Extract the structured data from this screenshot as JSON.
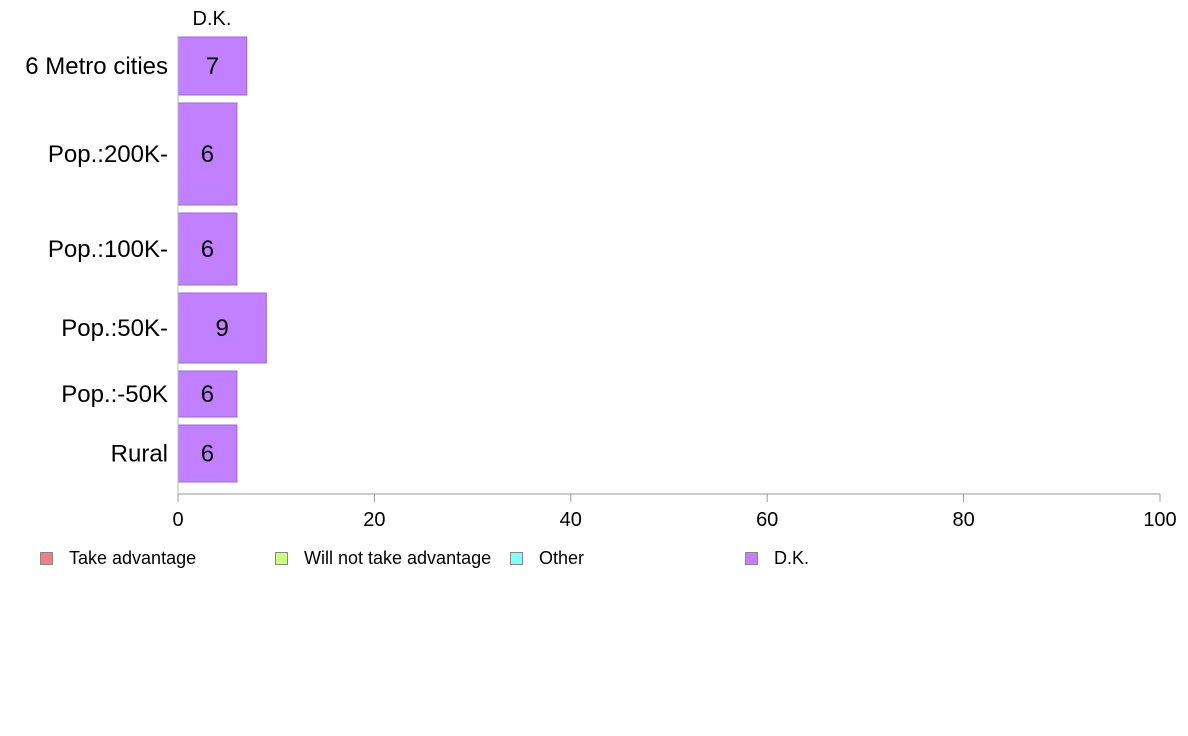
{
  "chart_data": {
    "type": "bar",
    "orientation": "horizontal",
    "stacked": true,
    "column_header": "D.K.",
    "categories": [
      "6 Metro cities",
      "Pop.:200K-",
      "Pop.:100K-",
      "Pop.:50K-",
      "Pop.:-50K",
      "Rural"
    ],
    "series": [
      {
        "name": "Take advantage",
        "color": "#f08080",
        "values": [
          null,
          null,
          null,
          null,
          null,
          null
        ]
      },
      {
        "name": "Will not take advantage",
        "color": "#ccff80",
        "values": [
          null,
          null,
          null,
          null,
          null,
          null
        ]
      },
      {
        "name": "Other",
        "color": "#80ffff",
        "values": [
          null,
          null,
          null,
          null,
          null,
          null
        ]
      },
      {
        "name": "D.K.",
        "color": "#c080ff",
        "values": [
          7,
          6,
          6,
          9,
          6,
          6
        ]
      }
    ],
    "data_labels": [
      "7",
      "6",
      "6",
      "9",
      "6",
      "6"
    ],
    "xlim": [
      0,
      100
    ],
    "xticks": [
      0,
      20,
      40,
      60,
      80,
      100
    ],
    "xtick_labels": [
      "0",
      "20",
      "40",
      "60",
      "80",
      "100"
    ],
    "grid": false,
    "legend_position": "bottom"
  }
}
